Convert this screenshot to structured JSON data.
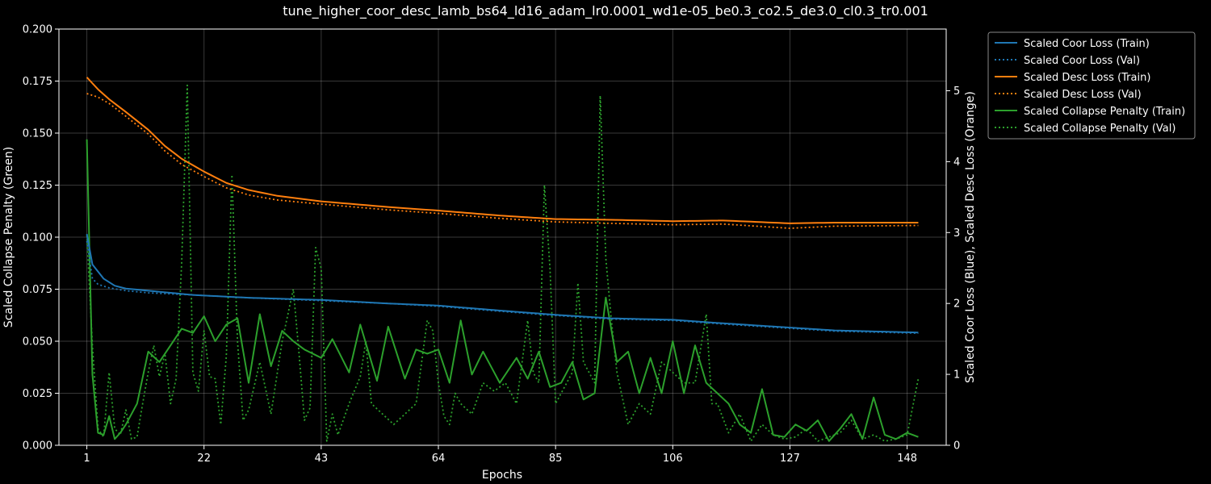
{
  "chart_data": {
    "type": "line",
    "title": "tune_higher_coor_desc_lamb_bs64_ld16_adam_lr0.0001_wd1e-05_be0.3_co2.5_de3.0_cl0.3_tr0.001",
    "xlabel": "Epochs",
    "ylabel_left": "Scaled Collapse Penalty (Green)",
    "ylabel_right": "Scaled Coor Loss (Blue), Scaled Desc Loss (Orange)",
    "x_ticks": [
      "1",
      "22",
      "43",
      "64",
      "85",
      "106",
      "127",
      "148"
    ],
    "x_tick_values": [
      1,
      22,
      43,
      64,
      85,
      106,
      127,
      148
    ],
    "xlim": [
      -4,
      155
    ],
    "y_left_ticks": [
      "0.000",
      "0.025",
      "0.050",
      "0.075",
      "0.100",
      "0.125",
      "0.150",
      "0.175",
      "0.200"
    ],
    "y_left_tick_values": [
      0,
      0.025,
      0.05,
      0.075,
      0.1,
      0.125,
      0.15,
      0.175,
      0.2
    ],
    "y_left_lim": [
      0,
      0.2
    ],
    "y_right_ticks": [
      "0",
      "1",
      "2",
      "3",
      "4",
      "5"
    ],
    "y_right_tick_values": [
      0,
      1,
      2,
      3,
      4,
      5
    ],
    "y_right_lim": [
      0,
      5.87
    ],
    "grid": true,
    "legend_position": "outside-top-right",
    "x_range": [
      1,
      150
    ],
    "series": [
      {
        "name": "Scaled Coor Loss (Train)",
        "axis": "right",
        "style": "solid",
        "color": "#1f77b4",
        "anchors": [
          [
            1,
            2.98
          ],
          [
            2,
            2.55
          ],
          [
            3,
            2.45
          ],
          [
            4,
            2.35
          ],
          [
            6,
            2.25
          ],
          [
            8,
            2.21
          ],
          [
            12,
            2.18
          ],
          [
            20,
            2.12
          ],
          [
            30,
            2.08
          ],
          [
            43,
            2.05
          ],
          [
            55,
            2.0
          ],
          [
            64,
            1.97
          ],
          [
            75,
            1.9
          ],
          [
            85,
            1.84
          ],
          [
            95,
            1.79
          ],
          [
            106,
            1.77
          ],
          [
            115,
            1.72
          ],
          [
            127,
            1.66
          ],
          [
            135,
            1.62
          ],
          [
            150,
            1.59
          ]
        ]
      },
      {
        "name": "Scaled Coor Loss (Val)",
        "axis": "right",
        "style": "dotted",
        "color": "#1f77b4",
        "anchors": [
          [
            1,
            2.88
          ],
          [
            2,
            2.35
          ],
          [
            3,
            2.27
          ],
          [
            5,
            2.22
          ],
          [
            8,
            2.18
          ],
          [
            12,
            2.15
          ],
          [
            20,
            2.12
          ],
          [
            30,
            2.08
          ],
          [
            43,
            2.04
          ],
          [
            55,
            2.0
          ],
          [
            64,
            1.96
          ],
          [
            75,
            1.89
          ],
          [
            85,
            1.83
          ],
          [
            95,
            1.78
          ],
          [
            106,
            1.76
          ],
          [
            115,
            1.71
          ],
          [
            127,
            1.65
          ],
          [
            135,
            1.61
          ],
          [
            150,
            1.58
          ]
        ]
      },
      {
        "name": "Scaled Desc Loss (Train)",
        "axis": "right",
        "style": "solid",
        "color": "#ff7f0e",
        "anchors": [
          [
            1,
            5.19
          ],
          [
            3,
            5.02
          ],
          [
            5,
            4.88
          ],
          [
            8,
            4.7
          ],
          [
            12,
            4.45
          ],
          [
            15,
            4.22
          ],
          [
            18,
            4.04
          ],
          [
            22,
            3.86
          ],
          [
            26,
            3.7
          ],
          [
            30,
            3.6
          ],
          [
            35,
            3.52
          ],
          [
            43,
            3.44
          ],
          [
            55,
            3.36
          ],
          [
            64,
            3.31
          ],
          [
            75,
            3.24
          ],
          [
            85,
            3.19
          ],
          [
            95,
            3.18
          ],
          [
            106,
            3.16
          ],
          [
            115,
            3.17
          ],
          [
            127,
            3.13
          ],
          [
            135,
            3.14
          ],
          [
            150,
            3.14
          ]
        ]
      },
      {
        "name": "Scaled Desc Loss (Val)",
        "axis": "right",
        "style": "dotted",
        "color": "#ff7f0e",
        "anchors": [
          [
            1,
            4.96
          ],
          [
            3,
            4.91
          ],
          [
            5,
            4.82
          ],
          [
            8,
            4.64
          ],
          [
            12,
            4.39
          ],
          [
            15,
            4.15
          ],
          [
            18,
            3.96
          ],
          [
            22,
            3.79
          ],
          [
            26,
            3.63
          ],
          [
            30,
            3.53
          ],
          [
            35,
            3.46
          ],
          [
            43,
            3.4
          ],
          [
            55,
            3.32
          ],
          [
            64,
            3.27
          ],
          [
            75,
            3.2
          ],
          [
            85,
            3.15
          ],
          [
            95,
            3.13
          ],
          [
            106,
            3.11
          ],
          [
            115,
            3.12
          ],
          [
            127,
            3.06
          ],
          [
            135,
            3.09
          ],
          [
            150,
            3.1
          ]
        ]
      },
      {
        "name": "Scaled Collapse Penalty (Train)",
        "axis": "left",
        "style": "solid",
        "color": "#2ca02c",
        "anchors": [
          [
            1,
            0.147
          ],
          [
            2,
            0.034
          ],
          [
            3,
            0.006
          ],
          [
            4,
            0.005
          ],
          [
            5,
            0.014
          ],
          [
            6,
            0.003
          ],
          [
            7,
            0.006
          ],
          [
            8,
            0.01
          ],
          [
            10,
            0.02
          ],
          [
            12,
            0.045
          ],
          [
            14,
            0.04
          ],
          [
            16,
            0.048
          ],
          [
            18,
            0.056
          ],
          [
            20,
            0.054
          ],
          [
            22,
            0.062
          ],
          [
            24,
            0.05
          ],
          [
            26,
            0.058
          ],
          [
            28,
            0.061
          ],
          [
            30,
            0.03
          ],
          [
            32,
            0.063
          ],
          [
            34,
            0.038
          ],
          [
            36,
            0.055
          ],
          [
            38,
            0.05
          ],
          [
            40,
            0.046
          ],
          [
            43,
            0.042
          ],
          [
            45,
            0.051
          ],
          [
            48,
            0.035
          ],
          [
            50,
            0.058
          ],
          [
            53,
            0.031
          ],
          [
            55,
            0.057
          ],
          [
            58,
            0.032
          ],
          [
            60,
            0.046
          ],
          [
            62,
            0.044
          ],
          [
            64,
            0.046
          ],
          [
            66,
            0.03
          ],
          [
            68,
            0.06
          ],
          [
            70,
            0.034
          ],
          [
            72,
            0.045
          ],
          [
            75,
            0.03
          ],
          [
            78,
            0.042
          ],
          [
            80,
            0.032
          ],
          [
            82,
            0.045
          ],
          [
            84,
            0.028
          ],
          [
            86,
            0.03
          ],
          [
            88,
            0.04
          ],
          [
            90,
            0.022
          ],
          [
            92,
            0.025
          ],
          [
            94,
            0.071
          ],
          [
            96,
            0.04
          ],
          [
            98,
            0.045
          ],
          [
            100,
            0.025
          ],
          [
            102,
            0.042
          ],
          [
            104,
            0.025
          ],
          [
            106,
            0.05
          ],
          [
            108,
            0.025
          ],
          [
            110,
            0.048
          ],
          [
            112,
            0.03
          ],
          [
            114,
            0.025
          ],
          [
            116,
            0.02
          ],
          [
            118,
            0.01
          ],
          [
            120,
            0.006
          ],
          [
            122,
            0.027
          ],
          [
            124,
            0.005
          ],
          [
            126,
            0.004
          ],
          [
            128,
            0.01
          ],
          [
            130,
            0.007
          ],
          [
            132,
            0.012
          ],
          [
            134,
            0.002
          ],
          [
            136,
            0.008
          ],
          [
            138,
            0.015
          ],
          [
            140,
            0.003
          ],
          [
            142,
            0.023
          ],
          [
            144,
            0.005
          ],
          [
            146,
            0.003
          ],
          [
            148,
            0.006
          ],
          [
            150,
            0.004
          ]
        ]
      },
      {
        "name": "Scaled Collapse Penalty (Val)",
        "axis": "left",
        "style": "dotted",
        "color": "#2ca02c",
        "anchors": [
          [
            1,
            0.101
          ],
          [
            2,
            0.048
          ],
          [
            3,
            0.008
          ],
          [
            4,
            0.004
          ],
          [
            5,
            0.035
          ],
          [
            6,
            0.008
          ],
          [
            7,
            0.005
          ],
          [
            8,
            0.017
          ],
          [
            9,
            0.003
          ],
          [
            10,
            0.004
          ],
          [
            11,
            0.02
          ],
          [
            12,
            0.035
          ],
          [
            13,
            0.048
          ],
          [
            14,
            0.033
          ],
          [
            15,
            0.044
          ],
          [
            16,
            0.02
          ],
          [
            17,
            0.032
          ],
          [
            18,
            0.088
          ],
          [
            19,
            0.173
          ],
          [
            20,
            0.035
          ],
          [
            21,
            0.026
          ],
          [
            22,
            0.055
          ],
          [
            23,
            0.033
          ],
          [
            24,
            0.032
          ],
          [
            25,
            0.01
          ],
          [
            26,
            0.043
          ],
          [
            27,
            0.13
          ],
          [
            28,
            0.05
          ],
          [
            29,
            0.012
          ],
          [
            30,
            0.017
          ],
          [
            32,
            0.04
          ],
          [
            34,
            0.015
          ],
          [
            36,
            0.05
          ],
          [
            38,
            0.075
          ],
          [
            39,
            0.045
          ],
          [
            40,
            0.012
          ],
          [
            41,
            0.018
          ],
          [
            42,
            0.095
          ],
          [
            43,
            0.085
          ],
          [
            44,
            0.002
          ],
          [
            45,
            0.015
          ],
          [
            46,
            0.005
          ],
          [
            48,
            0.02
          ],
          [
            50,
            0.033
          ],
          [
            51,
            0.05
          ],
          [
            52,
            0.02
          ],
          [
            54,
            0.015
          ],
          [
            56,
            0.01
          ],
          [
            58,
            0.015
          ],
          [
            60,
            0.02
          ],
          [
            61,
            0.04
          ],
          [
            62,
            0.06
          ],
          [
            63,
            0.055
          ],
          [
            64,
            0.03
          ],
          [
            65,
            0.014
          ],
          [
            66,
            0.01
          ],
          [
            67,
            0.025
          ],
          [
            68,
            0.02
          ],
          [
            70,
            0.015
          ],
          [
            72,
            0.03
          ],
          [
            74,
            0.026
          ],
          [
            76,
            0.03
          ],
          [
            78,
            0.02
          ],
          [
            80,
            0.06
          ],
          [
            81,
            0.035
          ],
          [
            82,
            0.03
          ],
          [
            83,
            0.125
          ],
          [
            84,
            0.085
          ],
          [
            85,
            0.02
          ],
          [
            86,
            0.025
          ],
          [
            88,
            0.035
          ],
          [
            89,
            0.078
          ],
          [
            90,
            0.04
          ],
          [
            92,
            0.03
          ],
          [
            93,
            0.168
          ],
          [
            94,
            0.09
          ],
          [
            95,
            0.06
          ],
          [
            96,
            0.035
          ],
          [
            98,
            0.01
          ],
          [
            100,
            0.02
          ],
          [
            102,
            0.015
          ],
          [
            104,
            0.04
          ],
          [
            106,
            0.035
          ],
          [
            108,
            0.03
          ],
          [
            110,
            0.03
          ],
          [
            112,
            0.063
          ],
          [
            113,
            0.02
          ],
          [
            114,
            0.02
          ],
          [
            116,
            0.006
          ],
          [
            118,
            0.015
          ],
          [
            120,
            0.002
          ],
          [
            122,
            0.01
          ],
          [
            124,
            0.005
          ],
          [
            126,
            0.003
          ],
          [
            128,
            0.004
          ],
          [
            130,
            0.008
          ],
          [
            132,
            0.002
          ],
          [
            134,
            0.004
          ],
          [
            136,
            0.006
          ],
          [
            138,
            0.012
          ],
          [
            140,
            0.003
          ],
          [
            142,
            0.005
          ],
          [
            144,
            0.002
          ],
          [
            146,
            0.003
          ],
          [
            148,
            0.005
          ],
          [
            150,
            0.032
          ]
        ]
      }
    ]
  }
}
